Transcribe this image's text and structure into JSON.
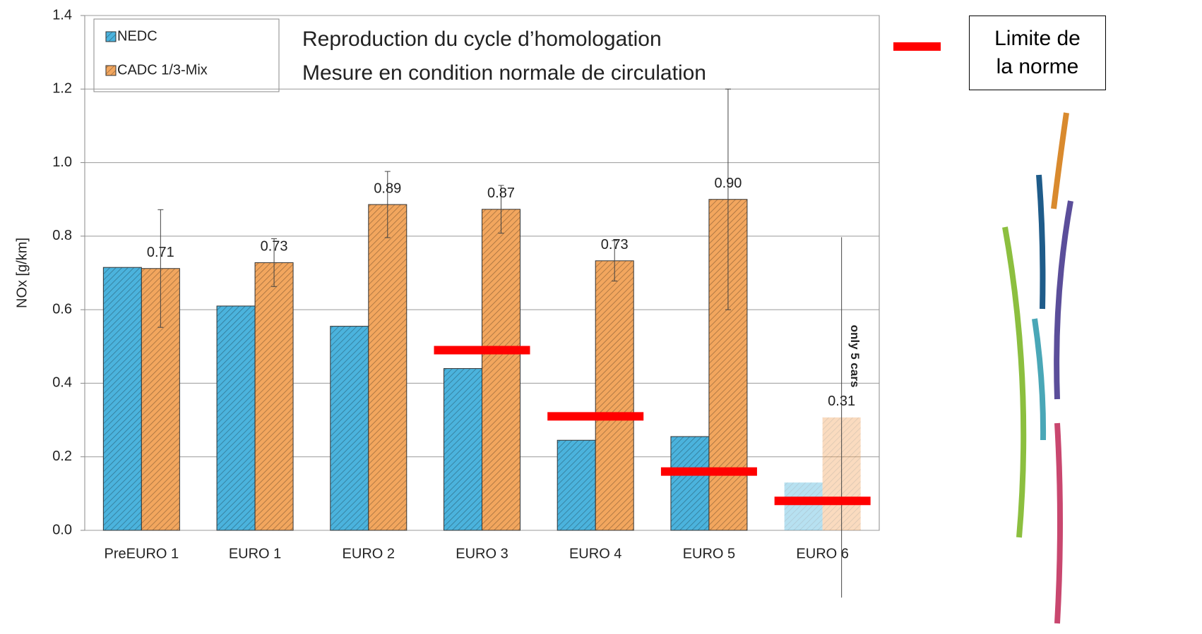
{
  "chart_data": {
    "type": "bar",
    "y_label": "NOx [g/km]",
    "annotations": [
      "Reproduction du cycle d’homologation",
      "Mesure en condition normale de circulation"
    ],
    "note": "only 5 cars",
    "categories": [
      "PreEURO 1",
      "EURO 1",
      "EURO 2",
      "EURO 3",
      "EURO 4",
      "EURO 5",
      "EURO 6"
    ],
    "faded_category": 6,
    "series": [
      {
        "name": "NEDC",
        "color": "#4bb3dd",
        "values": [
          0.715,
          0.61,
          0.555,
          0.44,
          0.245,
          0.255,
          0.13
        ]
      },
      {
        "name": "CADC 1/3-Mix",
        "color": "#f2a65e",
        "values": [
          0.712,
          0.728,
          0.886,
          0.873,
          0.733,
          0.9,
          0.307
        ],
        "value_labels": [
          "0.71",
          "0.73",
          "0.89",
          "0.87",
          "0.73",
          "0.90",
          "0.31"
        ],
        "errors": [
          0.16,
          0.065,
          0.09,
          0.065,
          0.055,
          0.3,
          0.49
        ]
      },
      {
        "name": "Limite de la norme",
        "color": "#ff0000",
        "style": "line",
        "values": [
          null,
          null,
          null,
          0.49,
          0.31,
          0.16,
          0.08
        ]
      }
    ],
    "ylim": [
      0,
      1.4
    ],
    "yticks": [
      {
        "value": 0,
        "label": "0.0"
      },
      0.2,
      0.4,
      0.6,
      0.8,
      {
        "value": 1,
        "label": "1.0"
      },
      1.2,
      1.4
    ],
    "grid": true
  }
}
